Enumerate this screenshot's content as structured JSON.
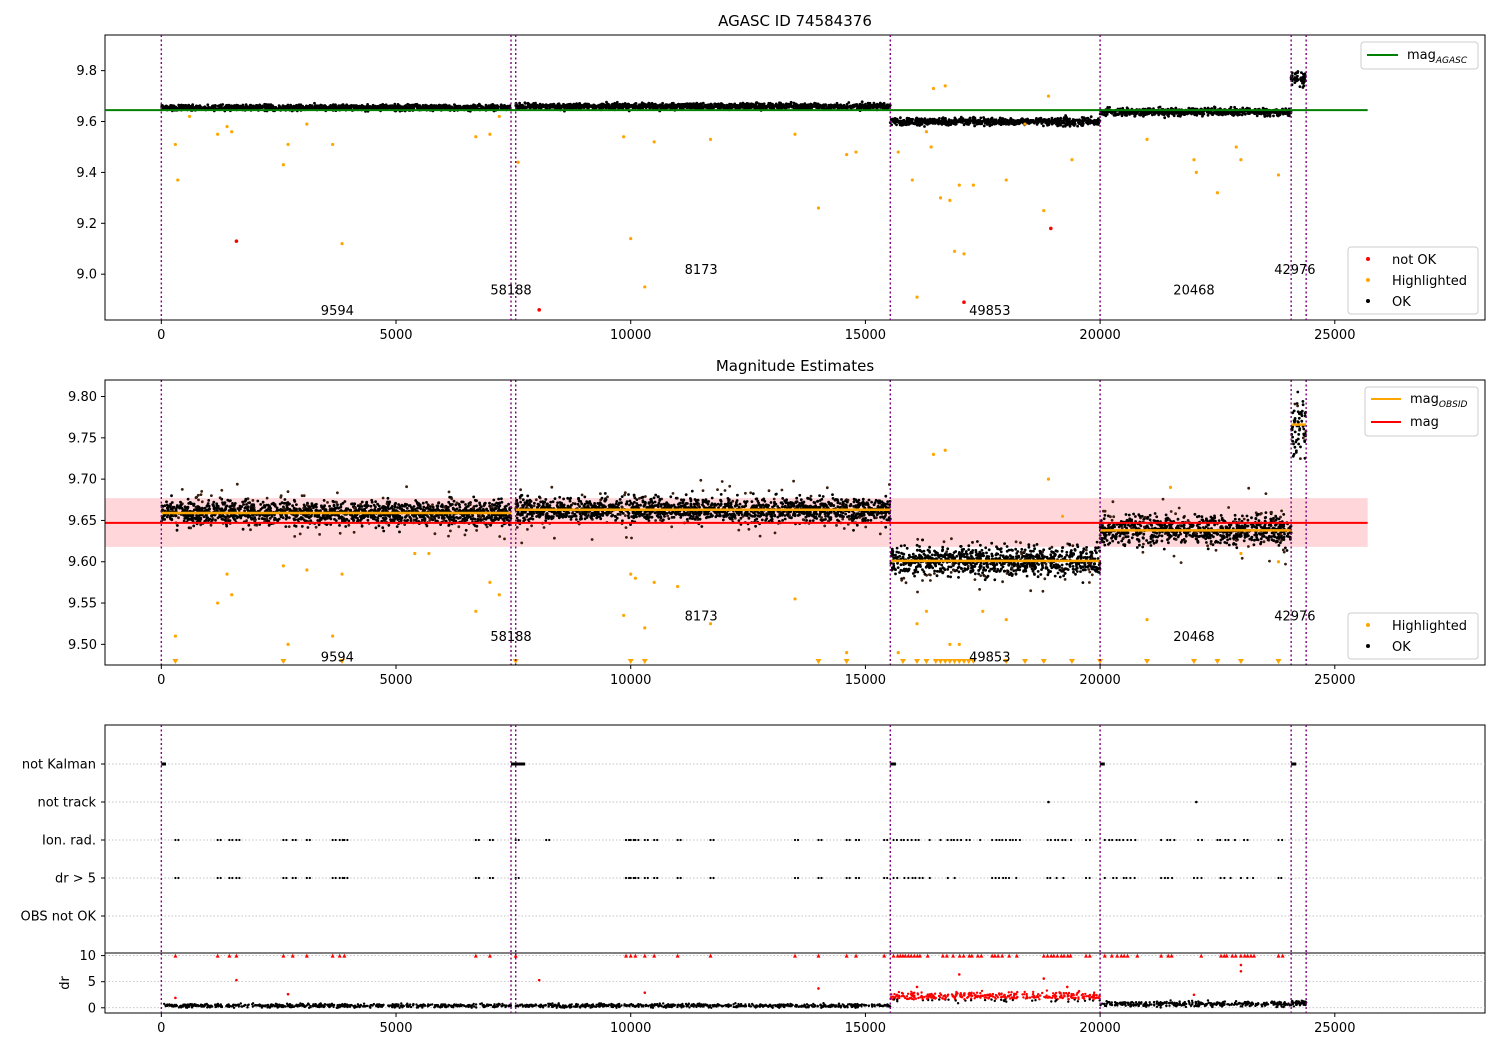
{
  "chart_data": [
    {
      "type": "scatter",
      "title": "AGASC ID 74584376",
      "xlim": [
        -1200,
        28200
      ],
      "ylim": [
        8.82,
        9.94
      ],
      "xticks": [
        0,
        5000,
        10000,
        15000,
        20000,
        25000
      ],
      "yticks": [
        9.0,
        9.2,
        9.4,
        9.6,
        9.8
      ],
      "ytick_labels": [
        "9.0",
        "9.2",
        "9.4",
        "9.6",
        "9.8"
      ],
      "obs_boundaries": [
        0,
        7450,
        7550,
        15530,
        20000,
        24070,
        24390
      ],
      "obs_labels": [
        {
          "text": "9594",
          "x": 3750,
          "y": 8.86
        },
        {
          "text": "58188",
          "x": 7450,
          "y": 8.94
        },
        {
          "text": "8173",
          "x": 11500,
          "y": 9.02
        },
        {
          "text": "49853",
          "x": 17650,
          "y": 8.86
        },
        {
          "text": "20468",
          "x": 22000,
          "y": 8.94
        },
        {
          "text": "42976",
          "x": 24150,
          "y": 9.02
        }
      ],
      "segments": [
        {
          "x0": 0,
          "x1": 7450,
          "mag": 9.655,
          "sd": 0.008
        },
        {
          "x0": 7550,
          "x1": 15530,
          "mag": 9.66,
          "sd": 0.008
        },
        {
          "x0": 15530,
          "x1": 20000,
          "mag": 9.6,
          "sd": 0.01
        },
        {
          "x0": 20000,
          "x1": 24070,
          "mag": 9.638,
          "sd": 0.01
        },
        {
          "x0": 24070,
          "x1": 24390,
          "mag": 9.77,
          "sd": 0.02
        }
      ],
      "mag_agasc": 9.645,
      "mag_agasc_range": [
        -1200,
        25700
      ],
      "highlighted": [
        [
          300,
          9.51
        ],
        [
          350,
          9.37
        ],
        [
          600,
          9.62
        ],
        [
          1200,
          9.55
        ],
        [
          1400,
          9.58
        ],
        [
          1500,
          9.56
        ],
        [
          2600,
          9.43
        ],
        [
          2700,
          9.51
        ],
        [
          3100,
          9.59
        ],
        [
          3650,
          9.51
        ],
        [
          3850,
          9.12
        ],
        [
          6700,
          9.54
        ],
        [
          7000,
          9.55
        ],
        [
          7200,
          9.62
        ],
        [
          7600,
          9.44
        ],
        [
          9850,
          9.54
        ],
        [
          10000,
          9.14
        ],
        [
          10300,
          8.95
        ],
        [
          10500,
          9.52
        ],
        [
          11700,
          9.53
        ],
        [
          13500,
          9.55
        ],
        [
          14000,
          9.26
        ],
        [
          14600,
          9.47
        ],
        [
          14800,
          9.48
        ],
        [
          15700,
          9.48
        ],
        [
          16000,
          9.37
        ],
        [
          16100,
          8.91
        ],
        [
          16300,
          9.56
        ],
        [
          16400,
          9.5
        ],
        [
          16600,
          9.3
        ],
        [
          16800,
          9.29
        ],
        [
          16900,
          9.09
        ],
        [
          17000,
          9.35
        ],
        [
          17100,
          9.08
        ],
        [
          17300,
          9.35
        ],
        [
          18000,
          9.37
        ],
        [
          18400,
          9.59
        ],
        [
          18800,
          9.25
        ],
        [
          19400,
          9.45
        ],
        [
          21000,
          9.53
        ],
        [
          22000,
          9.45
        ],
        [
          22050,
          9.4
        ],
        [
          22500,
          9.32
        ],
        [
          22900,
          9.5
        ],
        [
          23000,
          9.45
        ],
        [
          23800,
          9.39
        ],
        [
          16700,
          9.74
        ],
        [
          16450,
          9.73
        ],
        [
          18900,
          9.7
        ]
      ],
      "not_ok": [
        [
          1600,
          9.13
        ],
        [
          8050,
          8.86
        ],
        [
          17100,
          8.89
        ],
        [
          18950,
          9.18
        ]
      ],
      "legend": [
        "mag_AGASC",
        "not OK",
        "Highlighted",
        "OK"
      ],
      "colors": {
        "ok": "#000000",
        "highlighted": "#ffa500",
        "not_ok": "#ff0000",
        "mag_agasc": "#008000",
        "obs_line": "#800080"
      }
    },
    {
      "type": "scatter",
      "title": "Magnitude Estimates",
      "xlim": [
        -1200,
        28200
      ],
      "ylim": [
        9.475,
        9.82
      ],
      "xticks": [
        0,
        5000,
        10000,
        15000,
        20000,
        25000
      ],
      "yticks": [
        9.5,
        9.55,
        9.6,
        9.65,
        9.7,
        9.75,
        9.8
      ],
      "ytick_labels": [
        "9.50",
        "9.55",
        "9.60",
        "9.65",
        "9.70",
        "9.75",
        "9.80"
      ],
      "mag": 9.647,
      "mag_band": [
        9.618,
        9.677
      ],
      "mag_range": [
        -1200,
        25700
      ],
      "segments": [
        {
          "x0": 0,
          "x1": 7450,
          "mag": 9.659,
          "sd": 0.01
        },
        {
          "x0": 7550,
          "x1": 15530,
          "mag": 9.663,
          "sd": 0.01
        },
        {
          "x0": 15530,
          "x1": 20000,
          "mag": 9.601,
          "sd": 0.012
        },
        {
          "x0": 20000,
          "x1": 24070,
          "mag": 9.638,
          "sd": 0.012
        },
        {
          "x0": 24070,
          "x1": 24390,
          "mag": 9.766,
          "sd": 0.025
        }
      ],
      "obs_labels": [
        {
          "text": "9594",
          "x": 3750,
          "y": 9.485
        },
        {
          "text": "58188",
          "x": 7450,
          "y": 9.51
        },
        {
          "text": "8173",
          "x": 11500,
          "y": 9.535
        },
        {
          "text": "49853",
          "x": 17650,
          "y": 9.485
        },
        {
          "text": "20468",
          "x": 22000,
          "y": 9.51
        },
        {
          "text": "42976",
          "x": 24150,
          "y": 9.535
        }
      ],
      "highlighted": [
        [
          300,
          9.51
        ],
        [
          1200,
          9.55
        ],
        [
          1400,
          9.585
        ],
        [
          1500,
          9.56
        ],
        [
          2600,
          9.595
        ],
        [
          2700,
          9.5
        ],
        [
          3100,
          9.59
        ],
        [
          3650,
          9.51
        ],
        [
          3850,
          9.585
        ],
        [
          5400,
          9.61
        ],
        [
          5700,
          9.61
        ],
        [
          6700,
          9.54
        ],
        [
          7000,
          9.575
        ],
        [
          7200,
          9.56
        ],
        [
          9850,
          9.535
        ],
        [
          10000,
          9.585
        ],
        [
          10100,
          9.58
        ],
        [
          10300,
          9.52
        ],
        [
          10500,
          9.575
        ],
        [
          11000,
          9.57
        ],
        [
          11700,
          9.525
        ],
        [
          13500,
          9.555
        ],
        [
          14600,
          9.49
        ],
        [
          15700,
          9.49
        ],
        [
          16100,
          9.525
        ],
        [
          16300,
          9.54
        ],
        [
          16450,
          9.73
        ],
        [
          16700,
          9.735
        ],
        [
          16800,
          9.5
        ],
        [
          17000,
          9.5
        ],
        [
          17500,
          9.54
        ],
        [
          18000,
          9.53
        ],
        [
          18900,
          9.7
        ],
        [
          19200,
          9.655
        ],
        [
          21000,
          9.53
        ],
        [
          21500,
          9.69
        ],
        [
          23000,
          9.61
        ],
        [
          23800,
          9.6
        ]
      ],
      "clipped": [
        300,
        2600,
        3850,
        7550,
        10000,
        10300,
        14000,
        14600,
        15800,
        16100,
        16300,
        16500,
        16600,
        16700,
        16800,
        16900,
        17000,
        17100,
        17200,
        17300,
        18000,
        18400,
        18800,
        19400,
        20000,
        21000,
        22000,
        22500,
        23000,
        23800
      ],
      "legend": [
        "mag_OBSID",
        "mag",
        "Highlighted",
        "OK"
      ],
      "colors": {
        "ok": "#000000",
        "highlighted": "#ffa500",
        "mag_obsid": "#ffa500",
        "mag": "#ff0000",
        "band": "#ffd6da",
        "obs_line": "#800080"
      }
    },
    {
      "type": "scatter",
      "title": "",
      "xlim": [
        -1200,
        28200
      ],
      "xticks": [
        0,
        5000,
        10000,
        15000,
        20000,
        25000
      ],
      "flag_labels": [
        "not Kalman",
        "not track",
        "Ion. rad.",
        "dr > 5",
        "OBS not OK"
      ],
      "dr_ylabel": "dr",
      "dr_yticks": [
        0,
        5,
        10
      ],
      "dr_ylim": [
        -1,
        10.5
      ],
      "flags": {
        "not_kalman": [
          [
            0,
            100
          ],
          [
            7450,
            7750
          ],
          [
            15530,
            15650
          ],
          [
            20000,
            20100
          ],
          [
            24070,
            24180
          ]
        ],
        "not_track": [
          18900,
          22050
        ],
        "ion_rad": [
          300,
          1200,
          1450,
          1600,
          2600,
          2800,
          3100,
          3650,
          3800,
          3900,
          6700,
          7000,
          7550,
          8200,
          9900,
          10000,
          10100,
          10300,
          10500,
          11000,
          11700,
          13500,
          14000,
          14600,
          14800,
          15400
        ],
        "ion_rad_ranges": [
          [
            15600,
            16400
          ],
          [
            16600,
            17500
          ],
          [
            17700,
            18300
          ],
          [
            18800,
            19400
          ],
          [
            19700,
            19800
          ],
          [
            20100,
            20800
          ],
          [
            21300,
            21600
          ],
          [
            22000,
            22200
          ],
          [
            22500,
            22900
          ],
          [
            23000,
            23300
          ],
          [
            23800,
            23900
          ]
        ],
        "dr_gt5": [
          300,
          1200,
          1450,
          1600,
          2600,
          2800,
          3100,
          3650,
          3800,
          3900,
          6700,
          7000,
          7550,
          9900,
          10000,
          10100,
          10300,
          10500,
          11000,
          11700,
          13500,
          14000,
          14600,
          14800,
          15400
        ],
        "dr_gt5_ranges": [
          [
            15600,
            16400
          ],
          [
            16600,
            17500
          ],
          [
            17700,
            18300
          ],
          [
            18800,
            19400
          ],
          [
            19700,
            19800
          ],
          [
            20100,
            20800
          ],
          [
            21300,
            21600
          ],
          [
            22000,
            22200
          ],
          [
            22500,
            22900
          ],
          [
            23000,
            23300
          ],
          [
            23800,
            23900
          ]
        ]
      },
      "dr_segments": [
        {
          "x0": 0,
          "x1": 7450,
          "mean": 0.4,
          "sd": 0.25
        },
        {
          "x0": 7550,
          "x1": 15530,
          "mean": 0.4,
          "sd": 0.25
        },
        {
          "x0": 15530,
          "x1": 20000,
          "mean": 2.2,
          "sd": 0.6
        },
        {
          "x0": 20000,
          "x1": 24070,
          "mean": 0.7,
          "sd": 0.35
        },
        {
          "x0": 24070,
          "x1": 24390,
          "mean": 0.9,
          "sd": 0.4
        }
      ],
      "dr_outliers": [
        [
          300,
          1.9
        ],
        [
          1600,
          5.3
        ],
        [
          2700,
          2.6
        ],
        [
          8050,
          5.3
        ],
        [
          10300,
          2.9
        ],
        [
          14000,
          3.7
        ],
        [
          16100,
          4.0
        ],
        [
          17000,
          6.4
        ],
        [
          18800,
          5.6
        ],
        [
          19300,
          4.0
        ],
        [
          22000,
          2.5
        ],
        [
          23000,
          8.2
        ],
        [
          23000,
          7.0
        ]
      ],
      "colors": {
        "ok": "#000000",
        "bad": "#ff0000",
        "grid": "#b0b0b0",
        "obs_line": "#800080"
      }
    }
  ]
}
